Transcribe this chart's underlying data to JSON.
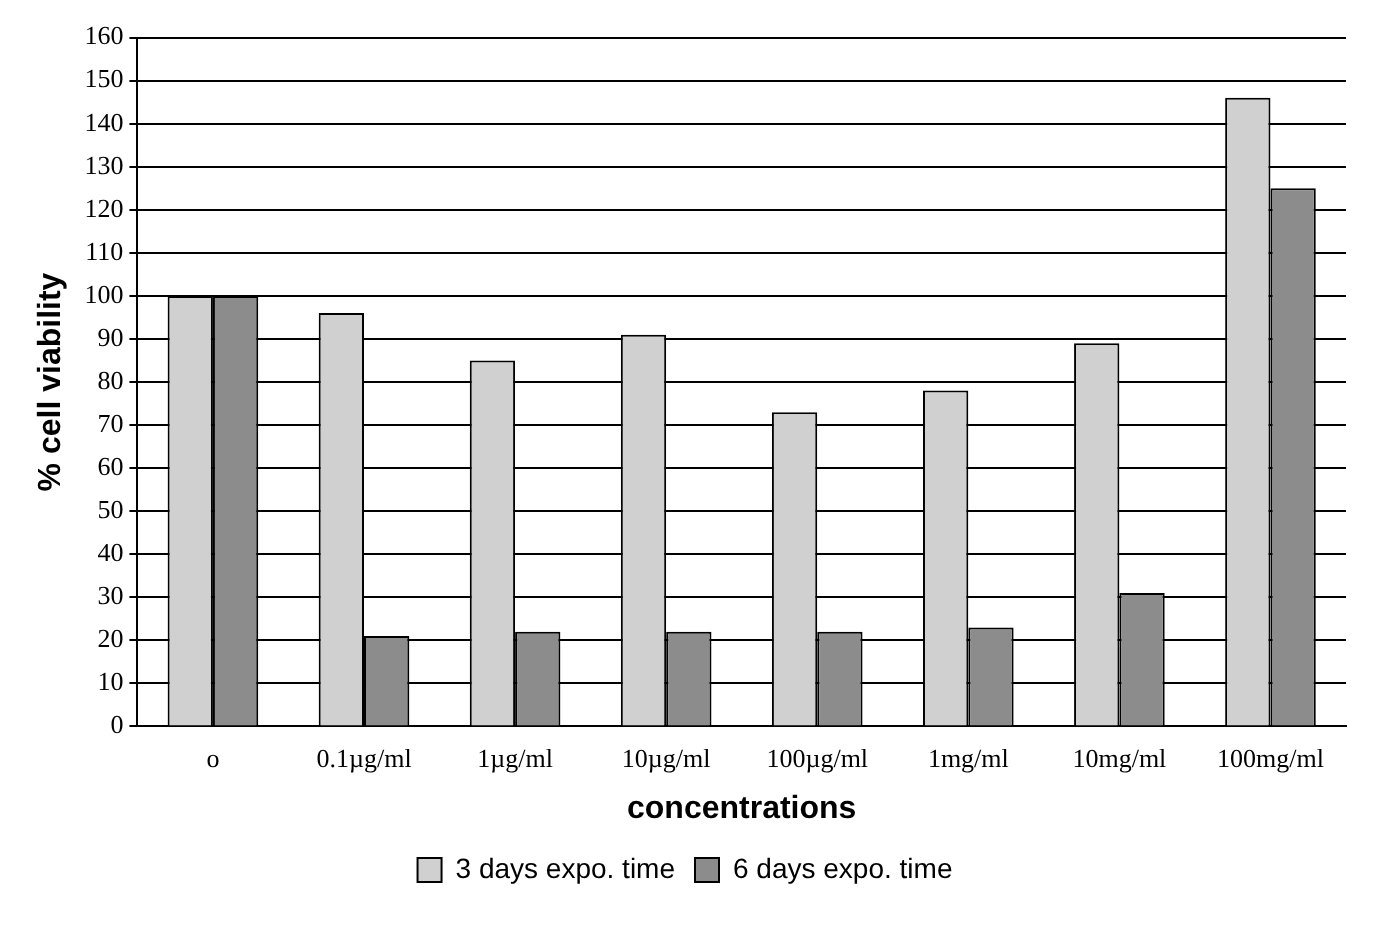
{
  "chart_data": {
    "type": "bar",
    "xlabel": "concentrations",
    "ylabel": "% cell viability",
    "categories": [
      "o",
      "0.1µg/ml",
      "1µg/ml",
      "10µg/ml",
      "100µg/ml",
      "1mg/ml",
      "10mg/ml",
      "100mg/ml"
    ],
    "series": [
      {
        "name": "3 days expo. time",
        "color": "#d0d0d0",
        "values": [
          100,
          96,
          85,
          91,
          73,
          78,
          89,
          146
        ]
      },
      {
        "name": "6 days expo. time",
        "color": "#8c8c8c",
        "values": [
          100,
          21,
          22,
          22,
          22,
          23,
          31,
          125
        ]
      }
    ],
    "ylim": [
      0,
      160
    ],
    "yticks": [
      0,
      10,
      20,
      30,
      40,
      50,
      60,
      70,
      80,
      90,
      100,
      110,
      120,
      130,
      140,
      150,
      160
    ],
    "grid": "y",
    "legend": "bottom"
  }
}
